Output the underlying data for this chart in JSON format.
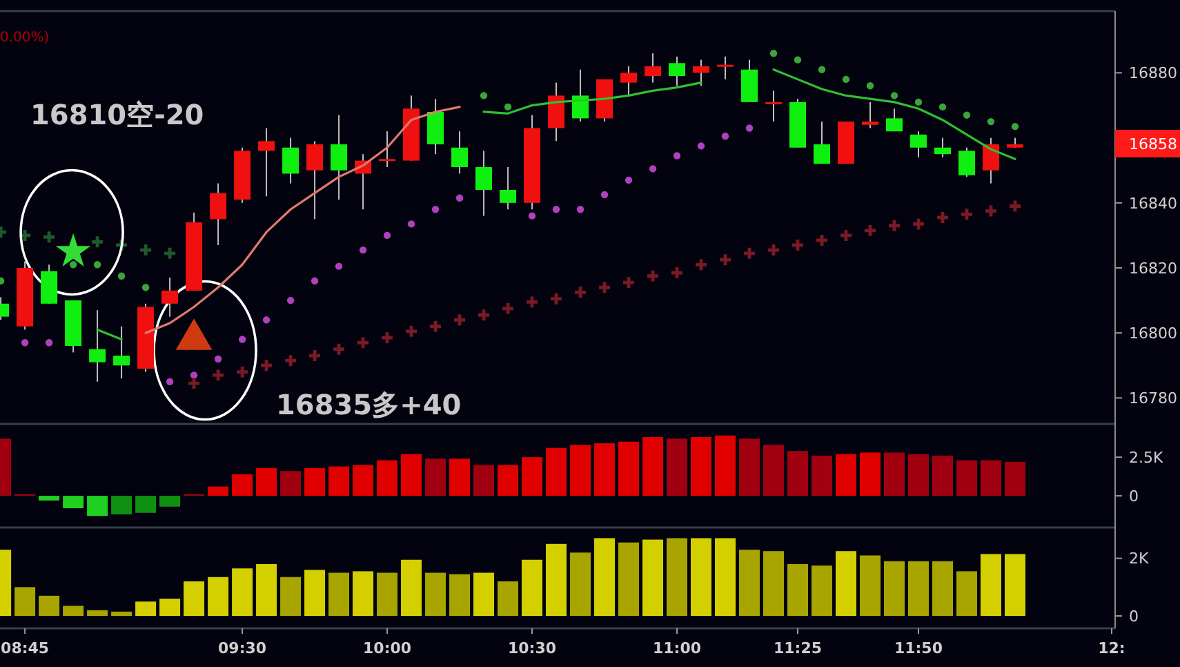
{
  "chart_data": [
    {
      "type": "candlestick",
      "x": [
        8.6667,
        8.75,
        8.8333,
        8.9167,
        9,
        9.0833,
        9.1667,
        9.25,
        9.3333,
        9.4167,
        9.5,
        9.5833,
        9.6667,
        9.75,
        9.8333,
        9.9167,
        10,
        10.0833,
        10.1667,
        10.25,
        10.3333,
        10.4167,
        10.5,
        10.5833,
        10.6667,
        10.75,
        10.8333,
        10.9167,
        11,
        11.0833,
        11.1667,
        11.25,
        11.3333,
        11.4167,
        11.5,
        11.5833,
        11.6667,
        11.75,
        11.8333,
        11.9167,
        12,
        12.0833,
        12.1667
      ],
      "ohlc": [
        [
          16809,
          16811,
          16804,
          16805
        ],
        [
          16802,
          16822,
          16801,
          16820
        ],
        [
          16819,
          16821,
          16809,
          16809
        ],
        [
          16810,
          16810,
          16794,
          16796
        ],
        [
          16795,
          16807,
          16785,
          16791
        ],
        [
          16793,
          16802,
          16786,
          16790
        ],
        [
          16789,
          16809,
          16788,
          16808
        ],
        [
          16809,
          16817,
          16805,
          16813
        ],
        [
          16813,
          16837,
          16813,
          16834
        ],
        [
          16835,
          16846,
          16827,
          16843
        ],
        [
          16841,
          16857,
          16840,
          16856
        ],
        [
          16856,
          16863,
          16842,
          16859
        ],
        [
          16857,
          16860,
          16846,
          16849
        ],
        [
          16850,
          16859,
          16835,
          16858
        ],
        [
          16858,
          16867,
          16841,
          16850
        ],
        [
          16849,
          16855,
          16838,
          16853
        ],
        [
          16853,
          16862,
          16851,
          16853.5
        ],
        [
          16853,
          16873,
          16853,
          16869
        ],
        [
          16868,
          16872,
          16855,
          16858
        ],
        [
          16857,
          16862,
          16849,
          16851
        ],
        [
          16851,
          16856,
          16836,
          16844
        ],
        [
          16844,
          16851,
          16838,
          16840
        ],
        [
          16840,
          16867,
          16838,
          16863
        ],
        [
          16863,
          16877,
          16859,
          16873
        ],
        [
          16873,
          16881,
          16865,
          16866
        ],
        [
          16866,
          16878,
          16865,
          16878
        ],
        [
          16877,
          16882,
          16873,
          16880
        ],
        [
          16879,
          16886,
          16877,
          16882
        ],
        [
          16883,
          16885,
          16876,
          16879
        ],
        [
          16880,
          16884,
          16876,
          16882
        ],
        [
          16882,
          16885,
          16878,
          16882.5
        ],
        [
          16881,
          16884,
          16871,
          16871
        ],
        [
          16870.5,
          16874.5,
          16865,
          16871
        ],
        [
          16871,
          16872,
          16857,
          16857
        ],
        [
          16858,
          16865,
          16852,
          16852
        ],
        [
          16852,
          16865,
          16852,
          16865
        ],
        [
          16864,
          16871,
          16863,
          16865
        ],
        [
          16866,
          16869,
          16862,
          16862
        ],
        [
          16861,
          16862,
          16854,
          16857
        ],
        [
          16857,
          16860,
          16854,
          16855
        ],
        [
          16856,
          16857,
          16848,
          16848.5
        ],
        [
          16850,
          16860,
          16846,
          16858
        ],
        [
          16857,
          16860,
          16857,
          16858
        ]
      ],
      "colors": [
        "#10f010",
        "#f01010",
        "#10f010",
        "#10f010",
        "#10f010",
        "#10f010",
        "#f01010",
        "#f01010",
        "#f01010",
        "#f01010",
        "#f01010",
        "#f01010",
        "#10f010",
        "#f01010",
        "#10f010",
        "#f01010",
        "#f01010",
        "#f01010",
        "#10f010",
        "#10f010",
        "#10f010",
        "#10f010",
        "#f01010",
        "#f01010",
        "#10f010",
        "#f01010",
        "#f01010",
        "#f01010",
        "#10f010",
        "#f01010",
        "#f01010",
        "#10f010",
        "#f01010",
        "#10f010",
        "#10f010",
        "#f01010",
        "#f01010",
        "#10f010",
        "#10f010",
        "#10f010",
        "#10f010",
        "#f01010",
        "#f01010"
      ],
      "series": [
        {
          "type": "line",
          "color": "#e07a6e",
          "values": [
            null,
            null,
            null,
            null,
            null,
            null,
            16800,
            16803,
            16808,
            16814,
            16821,
            16831,
            16838,
            16843,
            16848,
            16851.5,
            16857,
            16865.5,
            16868,
            16869.5,
            null,
            null,
            null,
            null,
            null,
            null,
            null,
            null,
            null,
            null,
            null,
            null,
            null,
            null,
            null,
            null,
            null,
            null,
            null,
            null,
            null,
            null,
            null
          ]
        },
        {
          "type": "line",
          "color": "#30c030",
          "values": [
            null,
            null,
            null,
            null,
            16801,
            16798,
            null,
            null,
            null,
            null,
            null,
            null,
            null,
            null,
            null,
            null,
            null,
            null,
            null,
            null,
            16868,
            16867.5,
            16870,
            16871,
            16871.5,
            16872,
            16873,
            16874.5,
            16875.5,
            16877,
            null,
            null,
            16881,
            16878,
            16875,
            16873,
            16872,
            16871,
            16869,
            16865.5,
            16861,
            16856.5,
            16853.5
          ]
        },
        {
          "type": "scatter",
          "marker": "circle",
          "color": "#3aa63a",
          "values": [
            16816,
            null,
            null,
            16821,
            16821,
            16817.5,
            16814,
            null,
            null,
            null,
            null,
            null,
            null,
            null,
            null,
            null,
            null,
            null,
            null,
            null,
            16873,
            16869.5,
            null,
            null,
            null,
            null,
            null,
            null,
            null,
            null,
            null,
            null,
            16886,
            16884,
            16881,
            16878,
            16876,
            16873,
            16871,
            16869.5,
            16867,
            16865,
            16863.5
          ]
        },
        {
          "type": "scatter",
          "marker": "circle",
          "color": "#b040c0",
          "values": [
            null,
            16797,
            16797,
            null,
            null,
            null,
            null,
            16785,
            16787,
            16792,
            16798,
            16804,
            16810,
            16816,
            16820.5,
            16825.5,
            16830,
            16833.5,
            16838,
            16841.5,
            null,
            null,
            16836,
            16838,
            16838,
            16842.5,
            16847,
            16850.5,
            16854.5,
            16857.5,
            16860.5,
            16863,
            null,
            null,
            null,
            null,
            null,
            null,
            null,
            null,
            null,
            null,
            null
          ]
        },
        {
          "type": "scatter",
          "marker": "cross",
          "color": "#7a1a24",
          "values": [
            null,
            null,
            null,
            null,
            null,
            null,
            null,
            null,
            16784.5,
            16787,
            16788,
            16790,
            16791.5,
            16793,
            16795,
            16797,
            16798.5,
            16800.5,
            16802,
            16804,
            16805.5,
            16807.5,
            16809.5,
            16810.5,
            16812.5,
            16814,
            16815.5,
            16817.5,
            16818.5,
            16821,
            16822.5,
            16824.5,
            16825.5,
            16827,
            16828.5,
            16830,
            16831.5,
            16833,
            16833.5,
            16835.5,
            16836.5,
            16837.5,
            16839
          ]
        },
        {
          "type": "scatter",
          "marker": "cross",
          "color": "#1e5a2a",
          "values": [
            16831,
            16830,
            16829.5,
            null,
            16828,
            16827,
            16825.5,
            16824.5,
            null,
            null,
            null,
            null,
            null,
            null,
            null,
            null,
            null,
            null,
            null,
            null,
            null,
            null,
            null,
            null,
            null,
            null,
            null,
            null,
            null,
            null,
            null,
            null,
            null,
            null,
            null,
            null,
            null,
            null,
            null,
            null,
            null,
            null,
            null
          ]
        },
        {
          "type": "scatter",
          "marker": "star",
          "color": "#33dd33",
          "x": [
            8.9167
          ],
          "values": [
            16825
          ]
        },
        {
          "type": "scatter",
          "marker": "triangle",
          "color": "#d03a10",
          "x": [
            9.3333
          ],
          "values": [
            16798
          ]
        }
      ],
      "xlim": [
        8.664,
        12.512
      ],
      "ylim": [
        16772,
        16899
      ],
      "yticks": [
        16780,
        16800,
        16820,
        16840,
        16880
      ],
      "tick_labels": "y",
      "annotations": [
        "0.00%)",
        "16810空-20",
        "16835多+40",
        "16858"
      ]
    },
    {
      "type": "bar",
      "x": [
        8.6667,
        8.75,
        8.8333,
        8.9167,
        9,
        9.0833,
        9.1667,
        9.25,
        9.3333,
        9.4167,
        9.5,
        9.5833,
        9.6667,
        9.75,
        9.8333,
        9.9167,
        10,
        10.0833,
        10.1667,
        10.25,
        10.3333,
        10.4167,
        10.5,
        10.5833,
        10.6667,
        10.75,
        10.8333,
        10.9167,
        11,
        11.0833,
        11.1667,
        11.25,
        11.3333,
        11.4167,
        11.5,
        11.5833,
        11.6667,
        11.75,
        11.8333,
        11.9167,
        12,
        12.0833,
        12.1667
      ],
      "values": [
        3700,
        100,
        -300,
        -800,
        -1300,
        -1200,
        -1100,
        -700,
        100,
        600,
        1400,
        1800,
        1600,
        1800,
        1900,
        2000,
        2300,
        2700,
        2400,
        2400,
        2000,
        2000,
        2500,
        3100,
        3300,
        3400,
        3500,
        3800,
        3700,
        3800,
        3900,
        3700,
        3300,
        2900,
        2600,
        2700,
        2800,
        2800,
        2700,
        2600,
        2300,
        2300,
        2200
      ],
      "colors": [
        "#a00010",
        "#a00010",
        "#20d020",
        "#20d020",
        "#20d020",
        "#109010",
        "#109010",
        "#109010",
        "#a00010",
        "#e00000",
        "#e00000",
        "#e00000",
        "#a00010",
        "#e00000",
        "#e00000",
        "#e00000",
        "#e00000",
        "#e00000",
        "#a00010",
        "#e00000",
        "#a00010",
        "#e00000",
        "#e00000",
        "#e00000",
        "#e00000",
        "#e00000",
        "#e00000",
        "#e00000",
        "#a00010",
        "#e00000",
        "#e00000",
        "#a00010",
        "#a00010",
        "#a00010",
        "#a00010",
        "#e00000",
        "#e00000",
        "#a00010",
        "#a00010",
        "#a00010",
        "#a00010",
        "#a00010",
        "#a00010"
      ],
      "xlim": [
        8.664,
        12.512
      ],
      "ylim": [
        -2050,
        4650
      ],
      "yticks": [
        0,
        {
          "value": 2500,
          "label": "2.5K"
        }
      ],
      "tick_labels": "y"
    },
    {
      "type": "bar",
      "x": [
        8.6667,
        8.75,
        8.8333,
        8.9167,
        9,
        9.0833,
        9.1667,
        9.25,
        9.3333,
        9.4167,
        9.5,
        9.5833,
        9.6667,
        9.75,
        9.8333,
        9.9167,
        10,
        10.0833,
        10.1667,
        10.25,
        10.3333,
        10.4167,
        10.5,
        10.5833,
        10.6667,
        10.75,
        10.8333,
        10.9167,
        11,
        11.0833,
        11.1667,
        11.25,
        11.3333,
        11.4167,
        11.5,
        11.5833,
        11.6667,
        11.75,
        11.8333,
        11.9167,
        12,
        12.0833,
        12.1667
      ],
      "values": [
        2300,
        1000,
        700,
        350,
        200,
        150,
        500,
        600,
        1200,
        1350,
        1650,
        1800,
        1350,
        1600,
        1500,
        1550,
        1500,
        1950,
        1500,
        1450,
        1500,
        1200,
        1950,
        2500,
        2200,
        2700,
        2550,
        2650,
        2700,
        2700,
        2700,
        2300,
        2250,
        1800,
        1750,
        2250,
        2100,
        1900,
        1900,
        1900,
        1550,
        2150,
        2150
      ],
      "colors": [
        "#d4d000",
        "#a8a400",
        "#a8a400",
        "#a8a400",
        "#a8a400",
        "#a8a400",
        "#d4d000",
        "#d4d000",
        "#d4d000",
        "#d4d000",
        "#d4d000",
        "#d4d000",
        "#a8a400",
        "#d4d000",
        "#a8a400",
        "#d4d000",
        "#a8a400",
        "#d4d000",
        "#a8a400",
        "#a8a400",
        "#d4d000",
        "#a8a400",
        "#d4d000",
        "#d4d000",
        "#a8a400",
        "#d4d000",
        "#a8a400",
        "#d4d000",
        "#a8a400",
        "#d4d000",
        "#d4d000",
        "#a8a400",
        "#a8a400",
        "#a8a400",
        "#a8a400",
        "#d4d000",
        "#a8a400",
        "#a8a400",
        "#a8a400",
        "#a8a400",
        "#a8a400",
        "#d4d000",
        "#d4d000"
      ],
      "xlim": [
        8.664,
        12.512
      ],
      "ylim": [
        -430,
        3070
      ],
      "yticks": [
        0,
        {
          "value": 2000,
          "label": "2K"
        }
      ],
      "xticks": [
        {
          "value": 8.75,
          "label": "08:45"
        },
        {
          "value": 9.5,
          "label": "09:30"
        },
        {
          "value": 10,
          "label": "10:00"
        },
        {
          "value": 10.5,
          "label": "10:30"
        },
        {
          "value": 11,
          "label": "11:00"
        },
        {
          "value": 11.4167,
          "label": "11:25"
        },
        {
          "value": 11.8333,
          "label": "11:50"
        },
        {
          "value": 12.5,
          "label": "12:"
        }
      ]
    }
  ]
}
